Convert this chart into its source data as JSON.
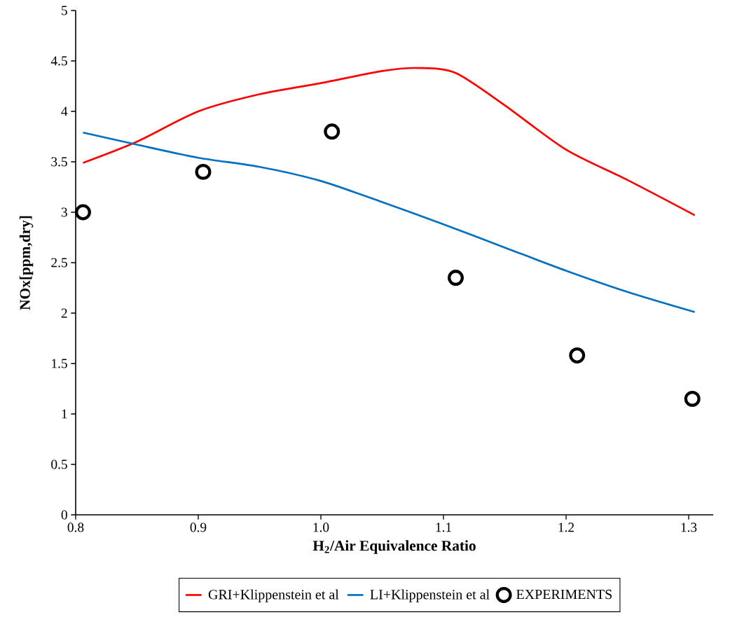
{
  "chart_data": {
    "type": "line",
    "xlabel": "H$_{2}$/Air Equivalence Ratio",
    "ylabel": "NOx[ppm,dry]",
    "xlim": [
      0.8,
      1.32
    ],
    "ylim": [
      0,
      5
    ],
    "xticks": [
      0.8,
      0.9,
      {
        "value": 1.0,
        "label": "1.0"
      },
      1.1,
      1.2,
      1.3
    ],
    "yticks": [
      0,
      0.5,
      1,
      1.5,
      2,
      2.5,
      3,
      3.5,
      4,
      4.5,
      5
    ],
    "grid": false,
    "legend": "bottom",
    "series": [
      {
        "name": "GRI+Klippenstein et al",
        "color": "#ff0000",
        "marker": "none",
        "x": [
          0.806,
          0.85,
          0.9,
          0.95,
          1.0,
          1.05,
          1.08,
          1.11,
          1.15,
          1.2,
          1.25,
          1.305
        ],
        "values": [
          3.49,
          3.7,
          4.0,
          4.17,
          4.28,
          4.4,
          4.43,
          4.38,
          4.06,
          3.62,
          3.32,
          2.97
        ]
      },
      {
        "name": "LI+Klippenstein et al",
        "color": "#0070c0",
        "marker": "none",
        "x": [
          0.806,
          0.85,
          0.9,
          0.95,
          1.0,
          1.05,
          1.1,
          1.15,
          1.2,
          1.25,
          1.305
        ],
        "values": [
          3.79,
          3.67,
          3.54,
          3.45,
          3.31,
          3.1,
          2.88,
          2.65,
          2.42,
          2.21,
          2.01
        ]
      },
      {
        "name": "EXPERIMENTS",
        "color": "#000000",
        "type": "scatter",
        "marker": "circle",
        "x": [
          0.806,
          0.904,
          1.009,
          1.11,
          1.209,
          1.303
        ],
        "values": [
          3.0,
          3.4,
          3.8,
          2.35,
          1.58,
          1.15
        ]
      }
    ]
  }
}
